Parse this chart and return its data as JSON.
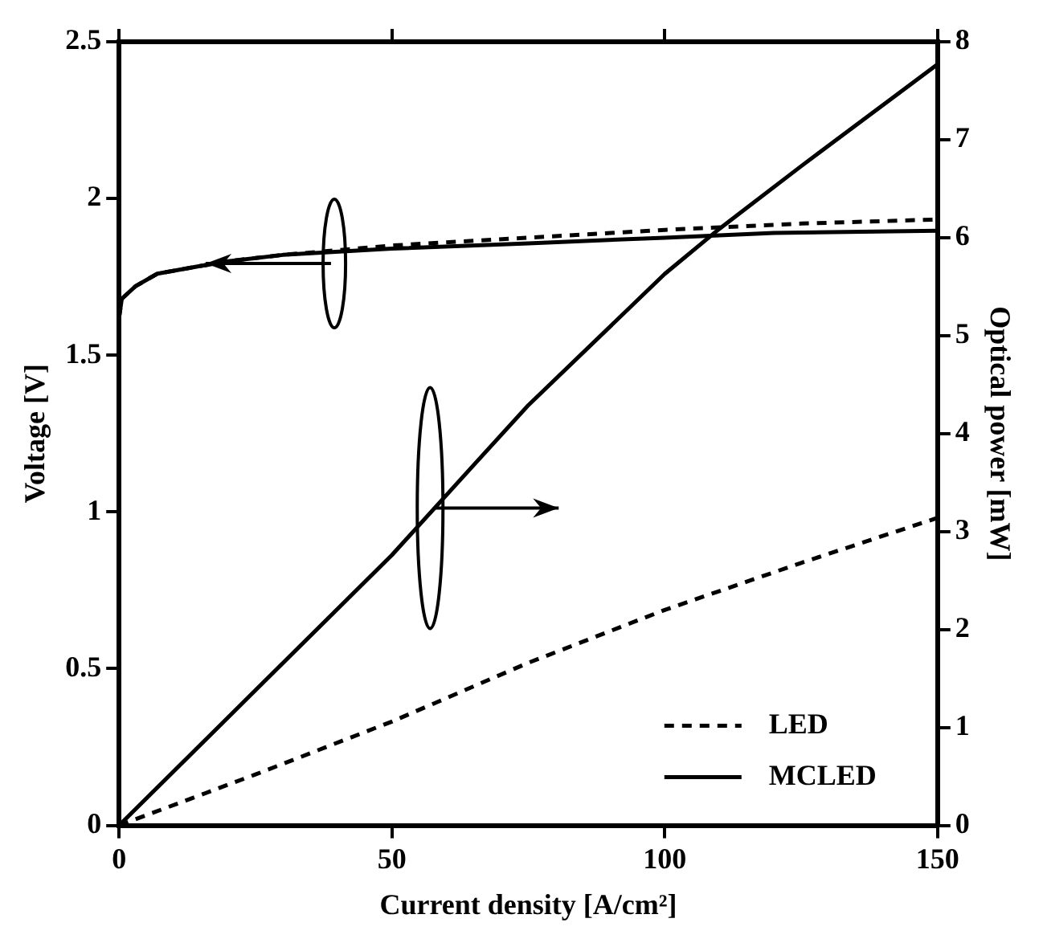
{
  "chart_data": {
    "type": "line",
    "xlabel": "Current density [A/cm²]",
    "ylabel": "Voltage [V]",
    "y2label": "Optical power [mW]",
    "xlim": [
      0,
      150
    ],
    "xticks": [
      0,
      50,
      100,
      150
    ],
    "ylim": [
      0,
      2.5
    ],
    "yticks": [
      0,
      0.5,
      1,
      1.5,
      2,
      2.5
    ],
    "y2lim": [
      0,
      8
    ],
    "y2ticks": [
      0,
      1,
      2,
      3,
      4,
      5,
      6,
      7,
      8
    ],
    "grid": false,
    "legend": "bottom right",
    "marker": "none",
    "series": [
      {
        "name": "LED",
        "color": "#000000",
        "line_style": "dashed",
        "x": [
          0,
          0.5,
          3,
          7,
          15,
          20,
          30,
          50,
          75,
          100,
          125,
          150
        ],
        "values": [
          1.62,
          1.68,
          1.72,
          1.76,
          1.785,
          1.8,
          1.82,
          1.85,
          1.875,
          1.9,
          1.92,
          1.933
        ]
      },
      {
        "name": "MCLED",
        "color": "#000000",
        "line_style": "solid",
        "x": [
          0,
          0.5,
          3,
          7,
          15,
          20,
          30,
          50,
          75,
          100,
          120,
          150
        ],
        "values": [
          1.62,
          1.68,
          1.72,
          1.76,
          1.785,
          1.8,
          1.82,
          1.84,
          1.857,
          1.875,
          1.89,
          1.897
        ]
      },
      {
        "color": "#000000",
        "line_style": "dashed",
        "axis": "y2",
        "x": [
          0,
          25,
          50,
          75,
          100,
          125,
          150
        ],
        "values": [
          0,
          0.52,
          1.06,
          1.66,
          2.2,
          2.68,
          3.14
        ]
      },
      {
        "color": "#000000",
        "line_style": "solid",
        "axis": "y2",
        "x": [
          0,
          25,
          50,
          65,
          75,
          100,
          110,
          125,
          150
        ],
        "values": [
          0,
          1.38,
          2.76,
          3.68,
          4.29,
          5.63,
          6.09,
          6.73,
          7.77
        ]
      }
    ]
  }
}
